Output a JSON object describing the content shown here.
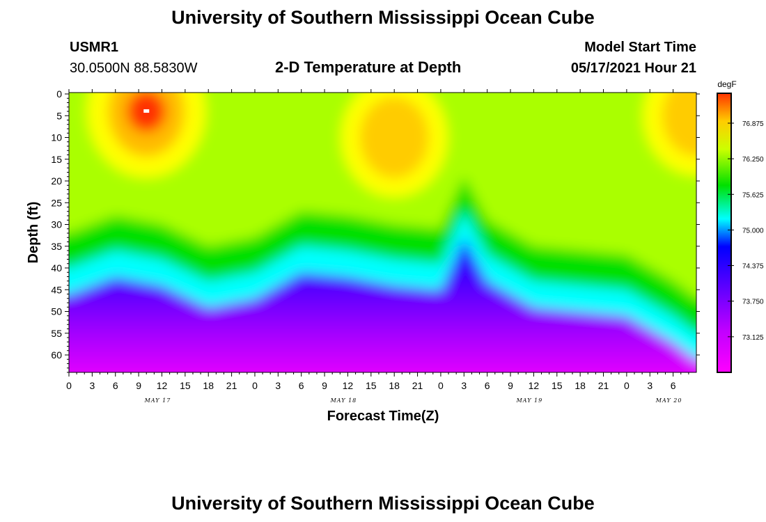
{
  "header": {
    "title_top": "University of Southern Mississippi Ocean Cube",
    "title_bottom": "University of Southern Mississippi Ocean Cube",
    "station_id": "USMR1",
    "station_coords": "30.0500N  88.5830W",
    "plot_title": "2-D Temperature at Depth",
    "model_start_label": "Model Start Time",
    "model_start_value": "05/17/2021 Hour 21"
  },
  "colors": {
    "magenta": "#ff00ff",
    "purple": "#8000ff",
    "blue": "#0000ff",
    "cyan": "#00ffff",
    "green": "#00e000",
    "yellow": "#ffff00",
    "orange": "#ff9900",
    "red": "#ff0000"
  },
  "chart_data": {
    "type": "heatmap",
    "title": "2-D Temperature at Depth",
    "xlabel": "Forecast Time(Z)",
    "ylabel": "Depth (ft)",
    "xlim": [
      0,
      81
    ],
    "ylim": [
      0,
      64
    ],
    "x_ticks": [
      0,
      3,
      6,
      9,
      12,
      15,
      18,
      21,
      24,
      27,
      30,
      33,
      36,
      39,
      42,
      45,
      48,
      51,
      54,
      57,
      60,
      63,
      66,
      69,
      72,
      75,
      78
    ],
    "x_tick_labels": [
      "0",
      "3",
      "6",
      "9",
      "12",
      "15",
      "18",
      "21",
      "0",
      "3",
      "6",
      "9",
      "12",
      "15",
      "18",
      "21",
      "0",
      "3",
      "6",
      "9",
      "12",
      "15",
      "18",
      "21",
      "0",
      "3",
      "6"
    ],
    "y_ticks": [
      0,
      5,
      10,
      15,
      20,
      25,
      30,
      35,
      40,
      45,
      50,
      55,
      60
    ],
    "y_tick_labels": [
      "0",
      "5",
      "10",
      "15",
      "20",
      "25",
      "30",
      "35",
      "40",
      "45",
      "50",
      "55",
      "60"
    ],
    "day_labels": [
      {
        "text": "MAY 17",
        "x": 12
      },
      {
        "text": "MAY 18",
        "x": 36
      },
      {
        "text": "MAY 19",
        "x": 60
      },
      {
        "text": "MAY 20",
        "x": 78
      }
    ],
    "colorbar": {
      "unit": "degF",
      "min": 72.5,
      "max": 77.4,
      "ticks": [
        76.875,
        76.25,
        75.625,
        75.0,
        74.375,
        73.75,
        73.125
      ],
      "tick_labels": [
        "76.875",
        "76.250",
        "75.625",
        "75.000",
        "74.375",
        "73.750",
        "73.125"
      ]
    },
    "thermocline_depth_ft": [
      {
        "hour": 0,
        "depth": 41
      },
      {
        "hour": 6,
        "depth": 37
      },
      {
        "hour": 12,
        "depth": 39
      },
      {
        "hour": 18,
        "depth": 44
      },
      {
        "hour": 24,
        "depth": 42
      },
      {
        "hour": 30,
        "depth": 36
      },
      {
        "hour": 36,
        "depth": 37
      },
      {
        "hour": 42,
        "depth": 39
      },
      {
        "hour": 48,
        "depth": 40
      },
      {
        "hour": 51,
        "depth": 28
      },
      {
        "hour": 54,
        "depth": 38
      },
      {
        "hour": 60,
        "depth": 44
      },
      {
        "hour": 66,
        "depth": 45
      },
      {
        "hour": 72,
        "depth": 46
      },
      {
        "hour": 78,
        "depth": 52
      },
      {
        "hour": 81,
        "depth": 56
      }
    ],
    "warm_cores": [
      {
        "hour": 10,
        "depth": 4,
        "value": 77.2,
        "peak": true
      },
      {
        "hour": 42,
        "depth": 10,
        "value": 76.7
      },
      {
        "hour": 81,
        "depth": 5,
        "value": 76.9
      }
    ]
  },
  "markers": {
    "max_marker": ""
  }
}
